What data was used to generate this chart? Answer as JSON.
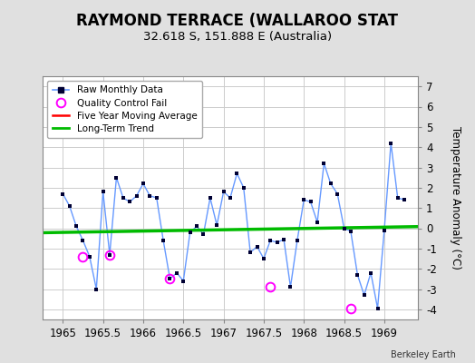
{
  "title": "RAYMOND TERRACE (WALLAROO STAT",
  "subtitle": "32.618 S, 151.888 E (Australia)",
  "credit": "Berkeley Earth",
  "ylabel": "Temperature Anomaly (°C)",
  "xlim": [
    1964.75,
    1969.42
  ],
  "ylim": [
    -4.5,
    7.5
  ],
  "yticks": [
    -4,
    -3,
    -2,
    -1,
    0,
    1,
    2,
    3,
    4,
    5,
    6,
    7
  ],
  "xticks": [
    1965,
    1965.5,
    1966,
    1966.5,
    1967,
    1967.5,
    1968,
    1968.5,
    1969
  ],
  "xtick_labels": [
    "1965",
    "1965.5",
    "1966",
    "1966.5",
    "1967",
    "1967.5",
    "1968",
    "1968.5",
    "1969"
  ],
  "background_color": "#e0e0e0",
  "plot_bg_color": "#ffffff",
  "raw_x": [
    1965.0,
    1965.083,
    1965.167,
    1965.25,
    1965.333,
    1965.417,
    1965.5,
    1965.583,
    1965.667,
    1965.75,
    1965.833,
    1965.917,
    1966.0,
    1966.083,
    1966.167,
    1966.25,
    1966.333,
    1966.417,
    1966.5,
    1966.583,
    1966.667,
    1966.75,
    1966.833,
    1966.917,
    1967.0,
    1967.083,
    1967.167,
    1967.25,
    1967.333,
    1967.417,
    1967.5,
    1967.583,
    1967.667,
    1967.75,
    1967.833,
    1967.917,
    1968.0,
    1968.083,
    1968.167,
    1968.25,
    1968.333,
    1968.417,
    1968.5,
    1968.583,
    1968.667,
    1968.75,
    1968.833,
    1968.917,
    1969.0,
    1969.083,
    1969.167,
    1969.25
  ],
  "raw_y": [
    1.7,
    1.1,
    0.1,
    -0.6,
    -1.4,
    -3.0,
    1.8,
    -1.3,
    2.5,
    1.5,
    1.3,
    1.6,
    2.2,
    1.6,
    1.5,
    -0.6,
    -2.5,
    -2.2,
    -2.6,
    -0.2,
    0.1,
    -0.3,
    1.5,
    0.15,
    1.8,
    1.5,
    2.7,
    2.0,
    -1.2,
    -0.9,
    -1.5,
    -0.6,
    -0.7,
    -0.55,
    -2.9,
    -0.6,
    1.4,
    1.3,
    0.3,
    3.2,
    2.2,
    1.7,
    0.0,
    -0.15,
    -2.3,
    -3.3,
    -2.2,
    -3.95,
    -0.1,
    4.2,
    1.5,
    1.4
  ],
  "qc_fail_x": [
    1965.25,
    1965.583,
    1966.333,
    1967.583,
    1968.583
  ],
  "qc_fail_y": [
    -1.4,
    -1.3,
    -2.5,
    -2.9,
    -3.95
  ],
  "trend_x": [
    1964.75,
    1969.42
  ],
  "trend_y": [
    -0.22,
    0.08
  ],
  "raw_line_color": "#6699ff",
  "raw_dot_color": "#000033",
  "trend_color": "#00bb00",
  "five_yr_color": "#ff0000",
  "qc_color": "#ff00ff",
  "grid_color": "#cccccc",
  "title_fontsize": 12,
  "subtitle_fontsize": 9.5,
  "tick_fontsize": 8.5,
  "ylabel_fontsize": 8.5
}
